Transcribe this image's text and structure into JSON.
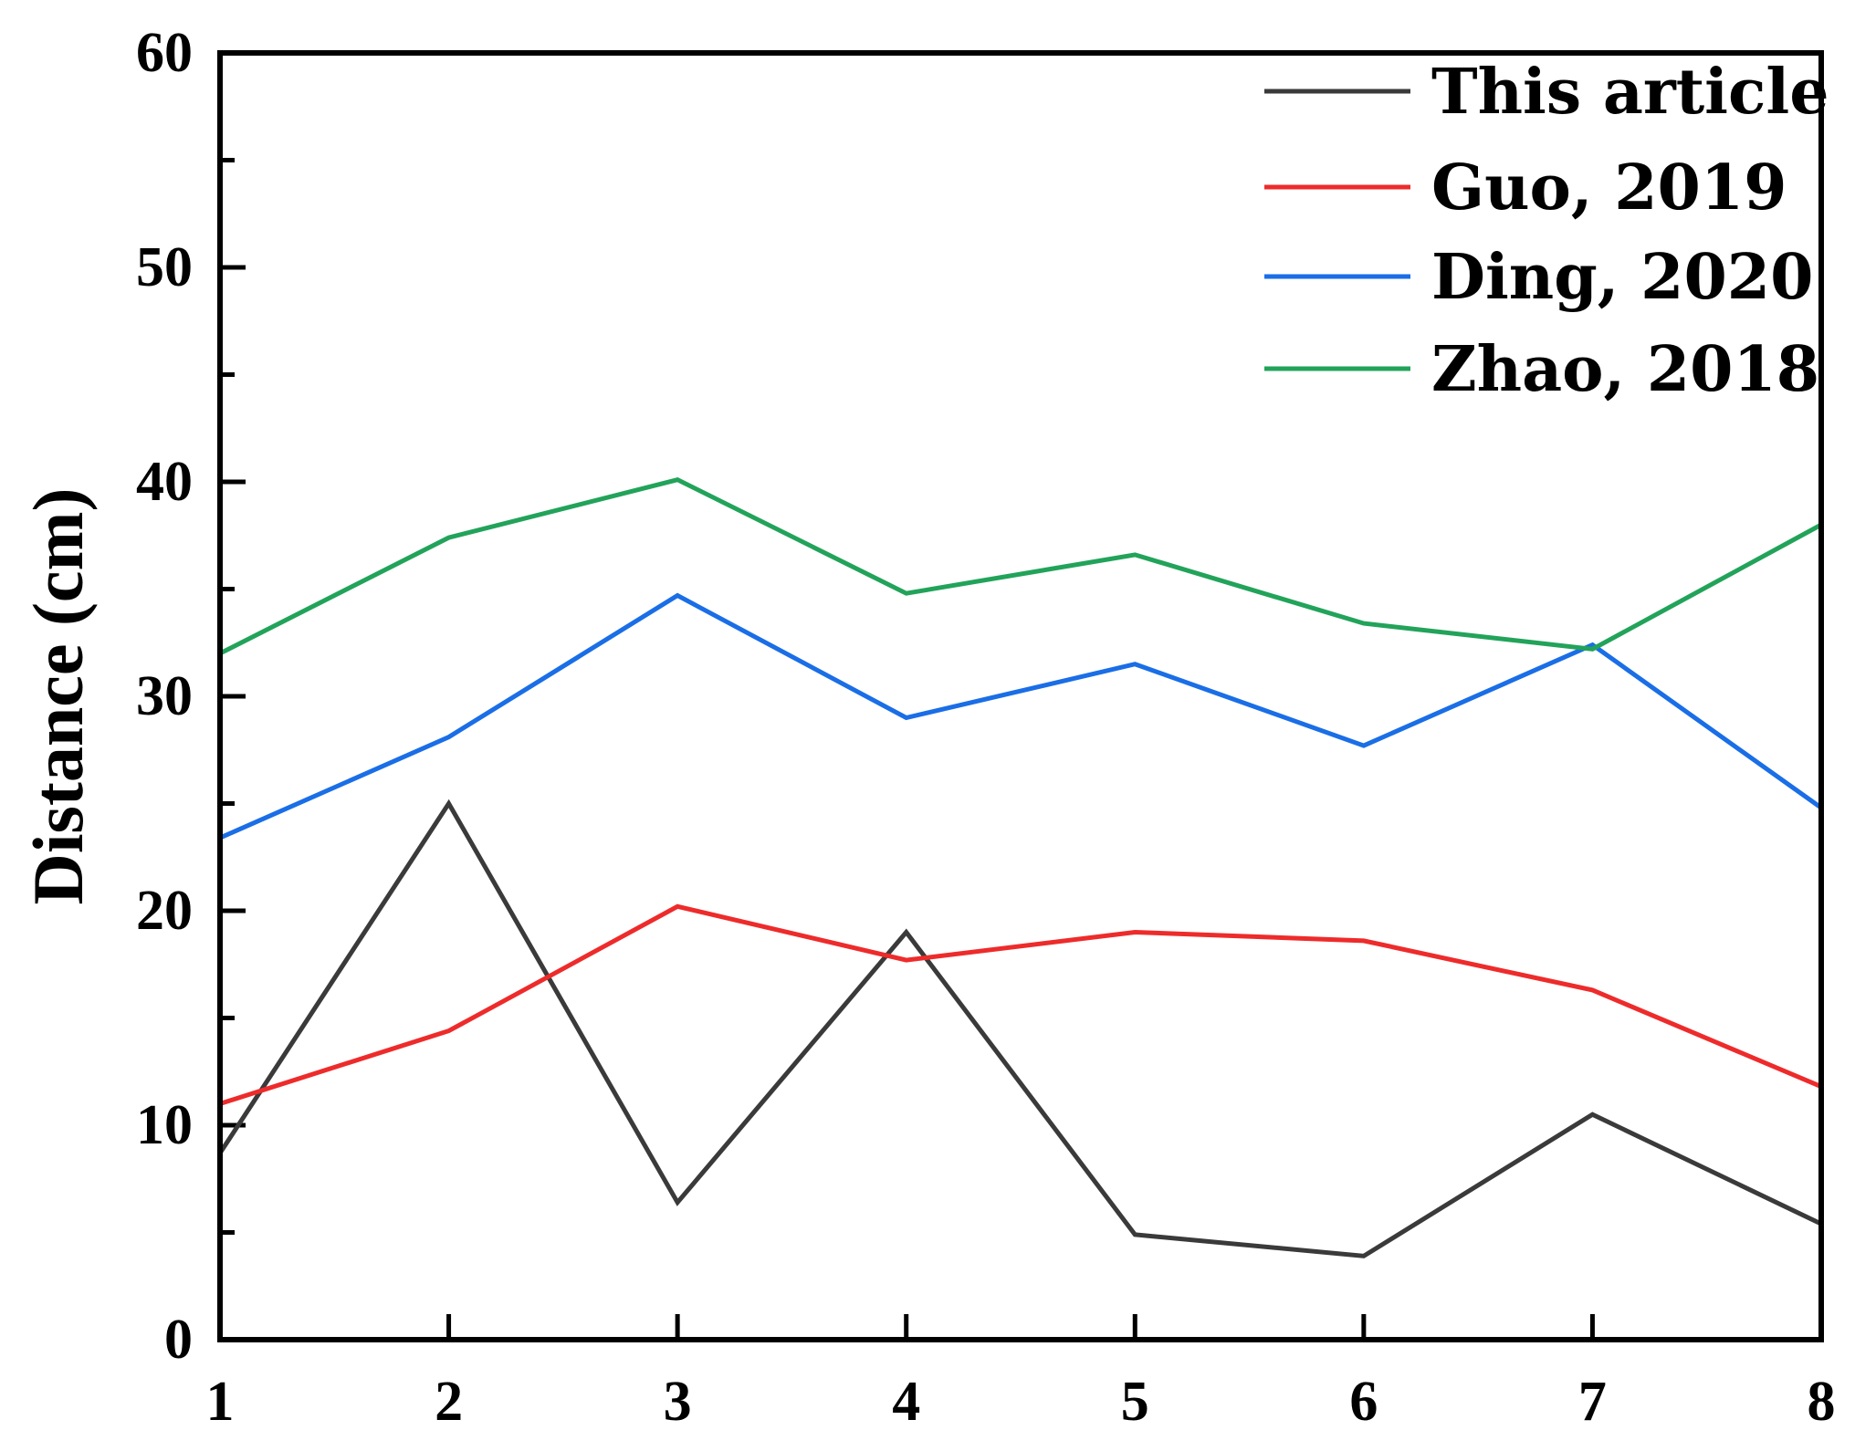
{
  "chart_data": {
    "type": "line",
    "x": [
      1,
      2,
      3,
      4,
      5,
      6,
      7,
      8
    ],
    "xlabel": "",
    "ylabel": "Distance (cm)",
    "xlim": [
      1,
      8
    ],
    "ylim": [
      0,
      60
    ],
    "y_ticks": [
      0,
      10,
      20,
      30,
      40,
      50,
      60
    ],
    "x_ticks": [
      1,
      2,
      3,
      4,
      5,
      6,
      7,
      8
    ],
    "grid": false,
    "legend_position": "top-right",
    "series": [
      {
        "name": "This article",
        "color": "#3a3a3a",
        "values": [
          8.7,
          25.0,
          6.4,
          19.0,
          4.9,
          3.9,
          10.5,
          5.4
        ]
      },
      {
        "name": "Guo, 2019",
        "color": "#ee2b2b",
        "values": [
          11.0,
          14.4,
          20.2,
          17.7,
          19.0,
          18.6,
          16.3,
          11.8
        ]
      },
      {
        "name": "Ding, 2020",
        "color": "#1a6ee6",
        "values": [
          23.4,
          28.1,
          34.7,
          29.0,
          31.5,
          27.7,
          32.4,
          24.8
        ]
      },
      {
        "name": "Zhao, 2018",
        "color": "#22a35a",
        "values": [
          32.0,
          37.4,
          40.1,
          34.8,
          36.6,
          33.4,
          32.2,
          38.0
        ]
      }
    ]
  }
}
